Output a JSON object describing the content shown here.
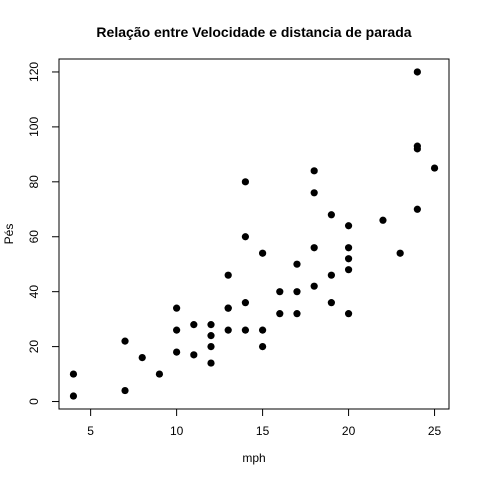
{
  "chart_data": {
    "type": "scatter",
    "title": "Relação entre Velocidade e distancia de parada",
    "xlabel": "mph",
    "ylabel": "Pés",
    "xlim": [
      3.16,
      25.84
    ],
    "ylim": [
      -2.72,
      124.72
    ],
    "xticks": [
      5,
      10,
      15,
      20,
      25
    ],
    "yticks": [
      0,
      20,
      40,
      60,
      80,
      100,
      120
    ],
    "grid": false,
    "legend": "none",
    "point_color": "#000000",
    "points": [
      {
        "x": 4,
        "y": 2
      },
      {
        "x": 4,
        "y": 10
      },
      {
        "x": 7,
        "y": 4
      },
      {
        "x": 7,
        "y": 22
      },
      {
        "x": 8,
        "y": 16
      },
      {
        "x": 9,
        "y": 10
      },
      {
        "x": 10,
        "y": 18
      },
      {
        "x": 10,
        "y": 26
      },
      {
        "x": 10,
        "y": 34
      },
      {
        "x": 11,
        "y": 17
      },
      {
        "x": 11,
        "y": 28
      },
      {
        "x": 12,
        "y": 14
      },
      {
        "x": 12,
        "y": 20
      },
      {
        "x": 12,
        "y": 24
      },
      {
        "x": 12,
        "y": 28
      },
      {
        "x": 13,
        "y": 26
      },
      {
        "x": 13,
        "y": 34
      },
      {
        "x": 13,
        "y": 34
      },
      {
        "x": 13,
        "y": 46
      },
      {
        "x": 14,
        "y": 26
      },
      {
        "x": 14,
        "y": 36
      },
      {
        "x": 14,
        "y": 60
      },
      {
        "x": 14,
        "y": 80
      },
      {
        "x": 15,
        "y": 20
      },
      {
        "x": 15,
        "y": 26
      },
      {
        "x": 15,
        "y": 54
      },
      {
        "x": 16,
        "y": 32
      },
      {
        "x": 16,
        "y": 40
      },
      {
        "x": 17,
        "y": 32
      },
      {
        "x": 17,
        "y": 40
      },
      {
        "x": 17,
        "y": 50
      },
      {
        "x": 18,
        "y": 42
      },
      {
        "x": 18,
        "y": 56
      },
      {
        "x": 18,
        "y": 76
      },
      {
        "x": 18,
        "y": 84
      },
      {
        "x": 19,
        "y": 36
      },
      {
        "x": 19,
        "y": 46
      },
      {
        "x": 19,
        "y": 68
      },
      {
        "x": 20,
        "y": 32
      },
      {
        "x": 20,
        "y": 48
      },
      {
        "x": 20,
        "y": 52
      },
      {
        "x": 20,
        "y": 56
      },
      {
        "x": 20,
        "y": 64
      },
      {
        "x": 22,
        "y": 66
      },
      {
        "x": 23,
        "y": 54
      },
      {
        "x": 24,
        "y": 70
      },
      {
        "x": 24,
        "y": 92
      },
      {
        "x": 24,
        "y": 93
      },
      {
        "x": 24,
        "y": 120
      },
      {
        "x": 25,
        "y": 85
      }
    ]
  }
}
